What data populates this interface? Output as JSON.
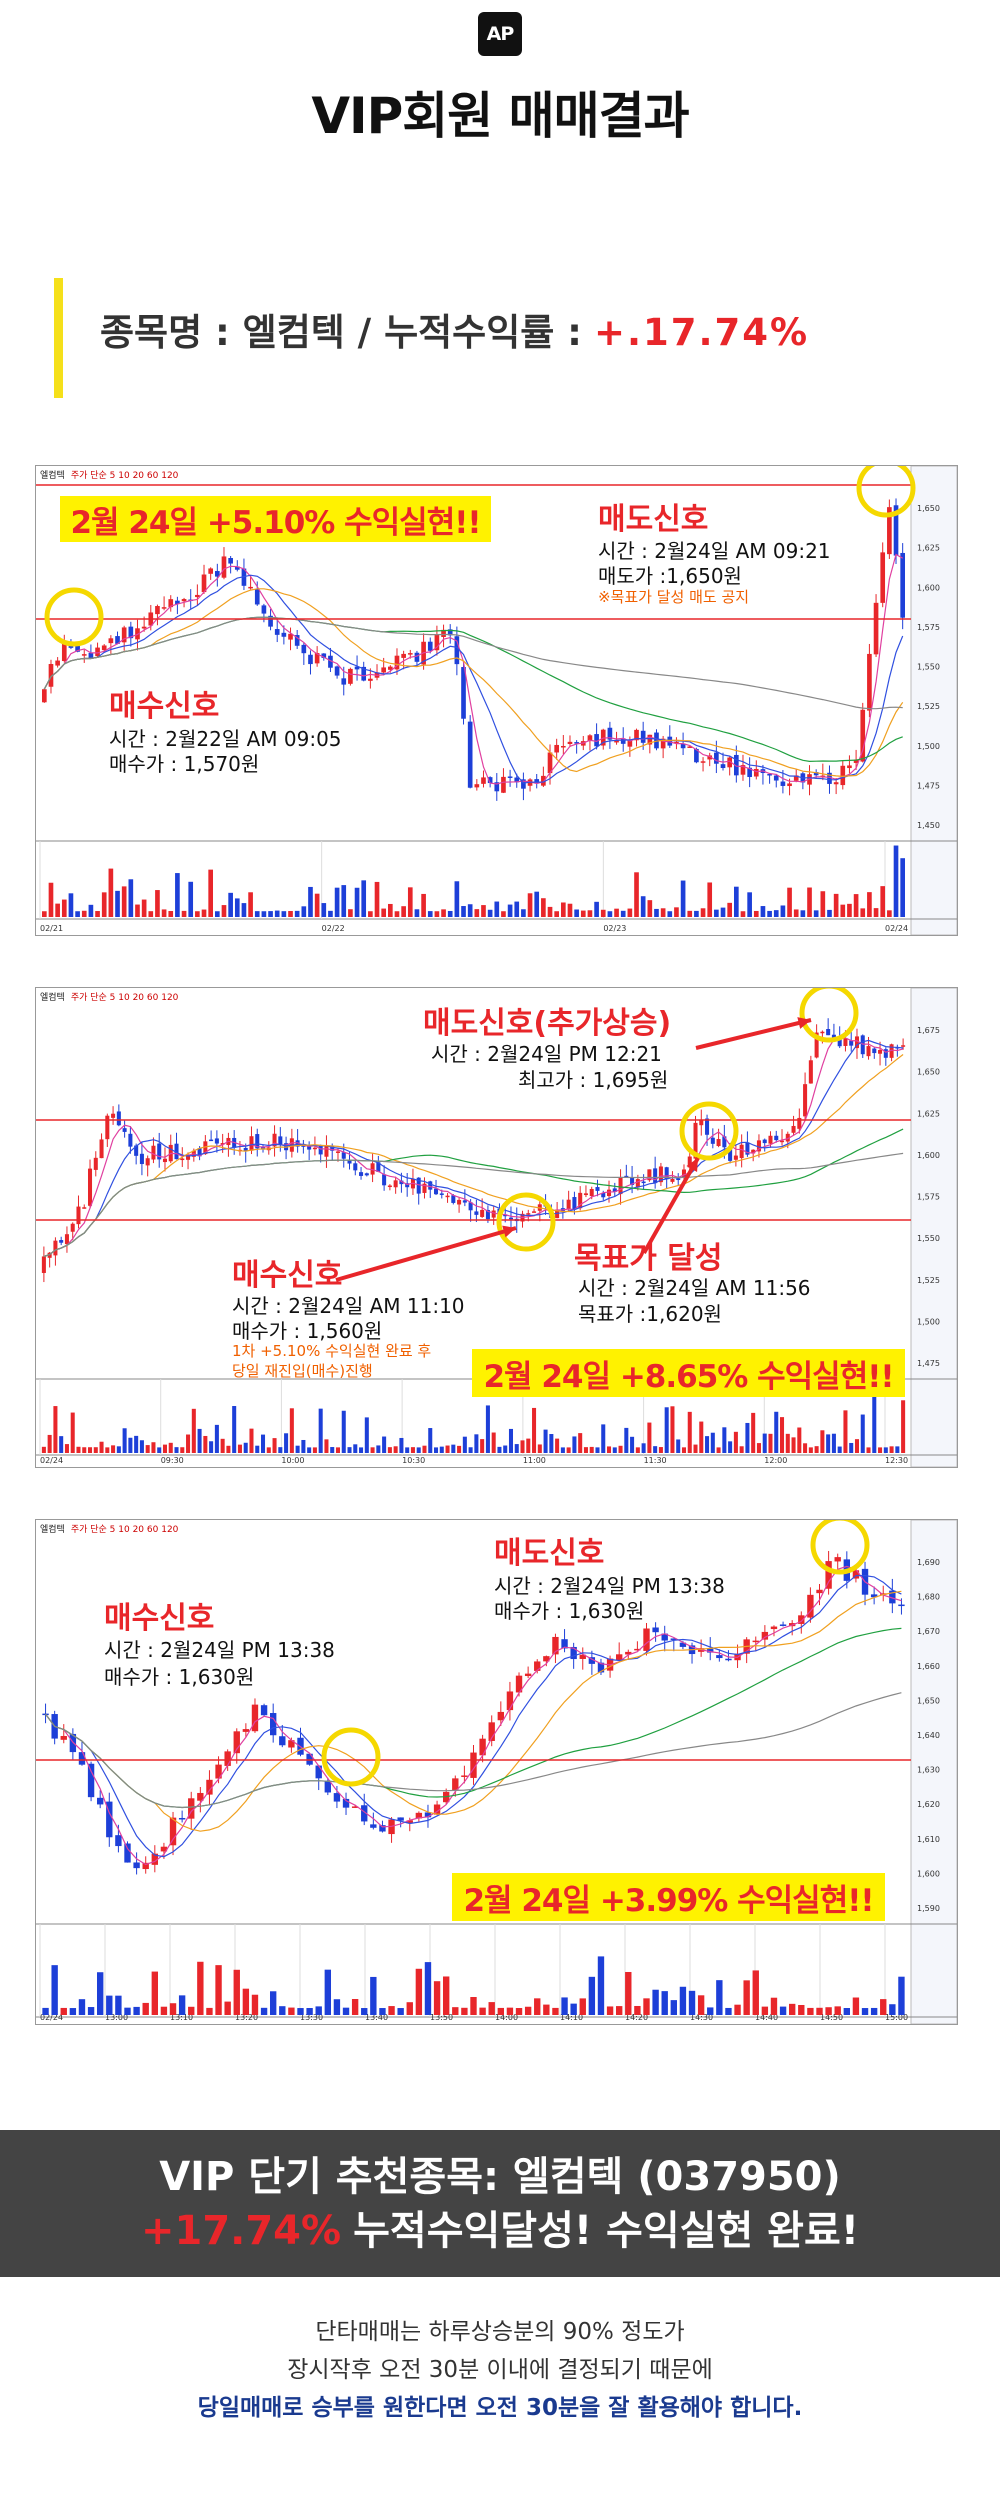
{
  "header": {
    "logo": "AP",
    "title": "VIP회원 매매결과"
  },
  "summary": {
    "label": "종목명 : 엘컴텍 / 누적수익률 :",
    "value": "+.17.74%"
  },
  "charts": [
    {
      "name_tag": "엘컴텍",
      "legend": "주가 단순 5 10 20 60 120",
      "highlight": "2월 24일 +5.10% 수익실현!!",
      "sell": {
        "title": "매도신호",
        "lines": [
          "시간 : 2월24일 AM 09:21",
          "매도가 :1,650원"
        ],
        "note": "※목표가 달성 매도 공지"
      },
      "buy": {
        "title": "매수신호",
        "lines": [
          "시간 : 2월22일 AM 09:05",
          "매수가 : 1,570원"
        ]
      },
      "price_ticks": [
        "1,650",
        "1,625",
        "1,600",
        "1,575",
        "1,550",
        "1,525",
        "1,500",
        "1,475",
        "1,450"
      ],
      "time_labels": [
        "02/21",
        "02/22",
        "02/23",
        "02/24"
      ]
    },
    {
      "name_tag": "엘컴텍",
      "legend": "주가 단순 5 10 20 60 120",
      "highlight": "2월 24일 +8.65% 수익실현!!",
      "sell": {
        "title": "매도신호(추가상승)",
        "lines": [
          "시간 : 2월24일 PM 12:21",
          "최고가 : 1,695원"
        ]
      },
      "buy": {
        "title": "매수신호",
        "lines": [
          "시간 : 2월24일 AM 11:10",
          "매수가 : 1,560원"
        ],
        "notes": [
          "1차 +5.10% 수익실현 완료 후",
          "당일 재진입(매수)진행"
        ]
      },
      "target": {
        "title": "목표가 달성",
        "lines": [
          "시간 : 2월24일 AM 11:56",
          "목표가 :1,620원"
        ]
      },
      "price_ticks": [
        "1,675",
        "1,650",
        "1,625",
        "1,600",
        "1,575",
        "1,550",
        "1,525",
        "1,500",
        "1,475"
      ],
      "time_labels": [
        "02/24",
        "09:30",
        "10:00",
        "10:30",
        "11:00",
        "11:30",
        "12:00",
        "12:30"
      ]
    },
    {
      "name_tag": "엘컴텍",
      "legend": "주가 단순 5 10 20 60 120",
      "highlight": "2월 24일 +3.99% 수익실현!!",
      "sell": {
        "title": "매도신호",
        "lines": [
          "시간 : 2월24일 PM 13:38",
          "매수가 : 1,630원"
        ]
      },
      "buy": {
        "title": "매수신호",
        "lines": [
          "시간 : 2월24일 PM 13:38",
          "매수가 : 1,630원"
        ]
      },
      "price_ticks": [
        "1,690",
        "1,680",
        "1,670",
        "1,660",
        "1,650",
        "1,640",
        "1,630",
        "1,620",
        "1,610",
        "1,600",
        "1,590"
      ],
      "time_labels": [
        "02/24",
        "13:00",
        "13:10",
        "13:20",
        "13:30",
        "13:40",
        "13:50",
        "14:00",
        "14:10",
        "14:20",
        "14:30",
        "14:40",
        "14:50",
        "15:00"
      ]
    }
  ],
  "banner": {
    "line1": "VIP 단기 추천종목: 엘컴텍 (037950)",
    "line2_value": "+17.74%",
    "line2_rest": "누적수익달성! 수익실현 완료!"
  },
  "footer": {
    "lines": [
      "단타매매는 하루상승분의 90% 정도가",
      "장시작후 오전 30분 이내에 결정되기 때문에"
    ],
    "emphasis": "당일매매로 승부를 원한다면 오전 30분을 잘 활용해야 합니다."
  }
}
